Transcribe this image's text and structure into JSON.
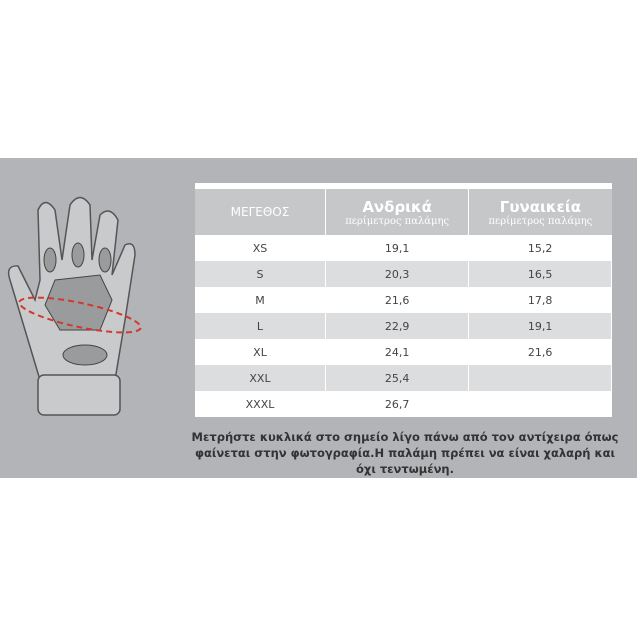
{
  "table": {
    "headers": [
      {
        "title": "ΜΕΓΕΘΟΣ",
        "subtitle": ""
      },
      {
        "title": "Ανδρικά",
        "subtitle": "περίμετρος παλάμης"
      },
      {
        "title": "Γυναικεία",
        "subtitle": "περίμετρος παλάμης"
      }
    ],
    "rows": [
      {
        "size": "XS",
        "men": "19,1",
        "women": "15,2"
      },
      {
        "size": "S",
        "men": "20,3",
        "women": "16,5"
      },
      {
        "size": "M",
        "men": "21,6",
        "women": "17,8"
      },
      {
        "size": "L",
        "men": "22,9",
        "women": "19,1"
      },
      {
        "size": "XL",
        "men": "24,1",
        "women": "21,6"
      },
      {
        "size": "XXL",
        "men": "25,4",
        "women": ""
      },
      {
        "size": "XXXL",
        "men": "26,7",
        "women": ""
      }
    ]
  },
  "note": "Μετρήστε κυκλικά στο σημείο λίγο πάνω από τον αντίχειρα όπως φαίνεται στην φωτογραφία.Η παλάμη πρέπει να είναι χαλαρή και όχι τεντωμένη.",
  "colors": {
    "band": "#b2b4b7",
    "header": "#c5c7c9",
    "measure": "#d0392b"
  }
}
